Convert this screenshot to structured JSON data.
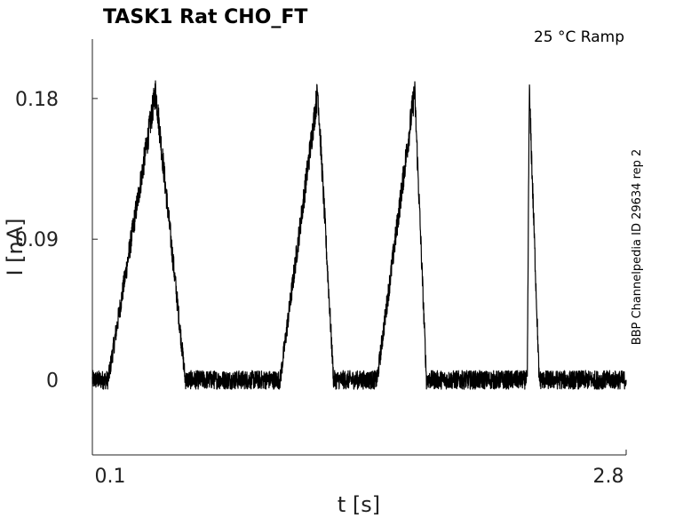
{
  "chart_data": {
    "type": "line",
    "title": "TASK1  Rat  CHO_FT",
    "condition": "25 °C  Ramp",
    "side_label": "BBP Channelpedia ID 29634 rep 2",
    "xlabel": "t [s]",
    "ylabel": "I [nA]",
    "xlim": [
      0.1,
      2.8
    ],
    "ylim": [
      -0.048,
      0.218
    ],
    "x_ticks": [
      "0.1",
      "2.8"
    ],
    "y_ticks": [
      "0",
      "0.09",
      "0.18"
    ],
    "grid": false,
    "legend": "none",
    "colors": {
      "trace": "#000000"
    },
    "series": [
      {
        "x": [
          0.1,
          0.18,
          0.42,
          0.57,
          0.7,
          0.97,
          1.05,
          1.24,
          1.32,
          1.46,
          1.54,
          1.73,
          1.79,
          1.81,
          1.9,
          2.26,
          2.3,
          2.31,
          2.36,
          2.36,
          2.8
        ],
        "y": [
          0.0,
          0.0,
          0.185,
          0.0,
          0.0,
          0.0,
          0.0,
          0.185,
          0.0,
          0.0,
          0.0,
          0.185,
          0.0,
          0.0,
          0.0,
          0.0,
          0.0,
          0.185,
          0.0,
          0.0,
          0.0
        ]
      }
    ]
  }
}
